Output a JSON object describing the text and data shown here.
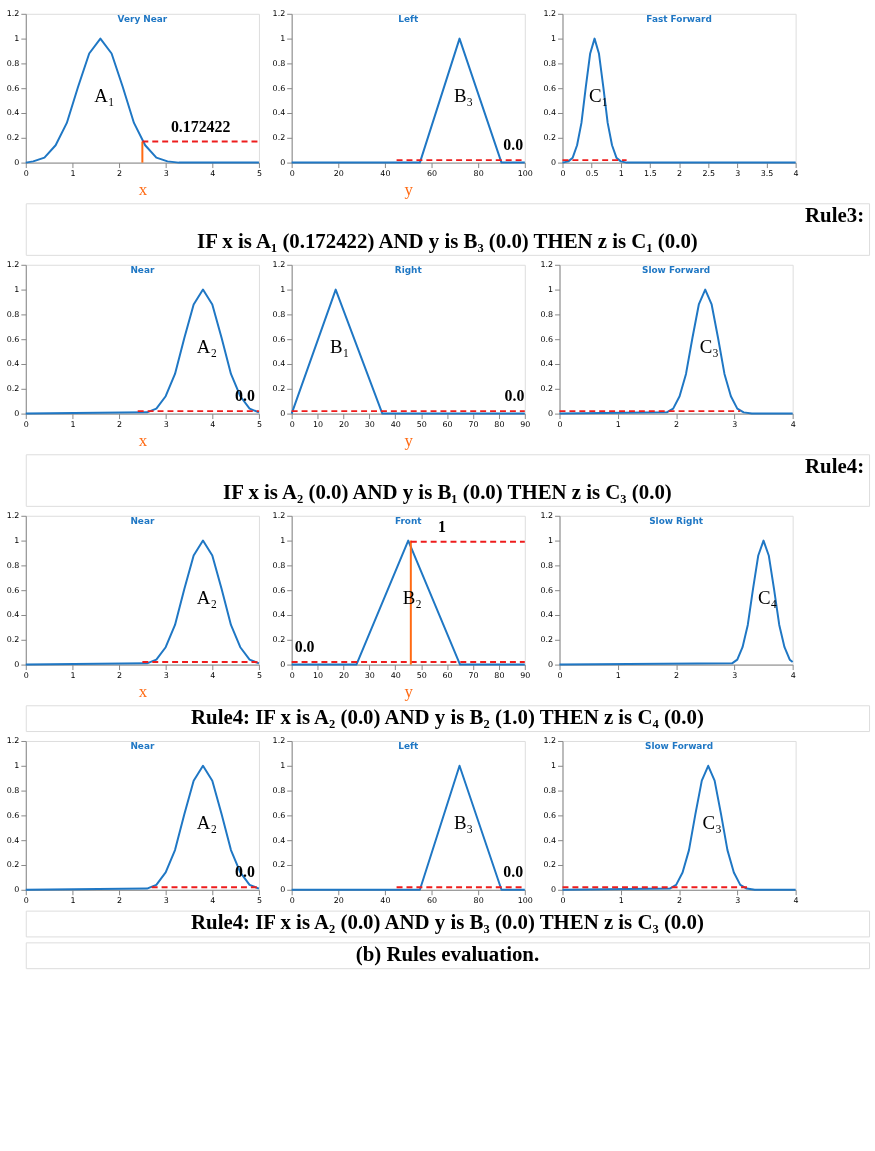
{
  "chart_data": [
    {
      "type": "line",
      "title": "Very Near",
      "xlabel": "x",
      "xlim": [
        0,
        5
      ],
      "xticks": [
        0,
        1,
        2,
        3,
        4,
        5
      ],
      "ylim": [
        0,
        1.2
      ],
      "yticks": [
        0,
        0.2,
        0.4,
        0.6,
        0.8,
        1,
        1.2
      ],
      "grid": false,
      "annotations": [
        "A₁",
        {
          "text": "0.172422",
          "x": 3.75,
          "y": 0.17
        }
      ],
      "series": [
        {
          "color": "#1f77c4",
          "x": [
            0,
            0.16,
            0.4,
            0.64,
            0.88,
            1.12,
            1.36,
            1.6,
            1.84,
            2.08,
            2.32,
            2.56,
            2.8,
            3.04,
            3.28,
            5
          ],
          "values": [
            0,
            0.01,
            0.04,
            0.14,
            0.32,
            0.61,
            0.88,
            1,
            0.88,
            0.61,
            0.32,
            0.14,
            0.04,
            0.01,
            0,
            0
          ]
        },
        {
          "color": "#ff6a13",
          "x": [
            2.5,
            2.5
          ],
          "values": [
            0,
            0.17
          ]
        },
        {
          "color": "#ee1c1c",
          "line_style": "dashed",
          "x": [
            2.5,
            5
          ],
          "values": [
            0.17,
            0.17
          ]
        }
      ]
    },
    {
      "type": "line",
      "title": "Left",
      "xlabel": "y",
      "xlim": [
        0,
        100
      ],
      "xticks": [
        0,
        20,
        40,
        60,
        80,
        100
      ],
      "ylim": [
        0,
        1.2
      ],
      "yticks": [
        0,
        0.2,
        0.4,
        0.6,
        0.8,
        1,
        1.2
      ],
      "grid": false,
      "annotations": [
        "B₃",
        {
          "text": "0.0",
          "x": 95,
          "y": 0.02
        }
      ],
      "series": [
        {
          "color": "#1f77c4",
          "x": [
            0,
            55,
            72,
            90,
            100
          ],
          "values": [
            0,
            0,
            1,
            0,
            0
          ]
        },
        {
          "color": "#ee1c1c",
          "line_style": "dashed",
          "x": [
            45,
            100
          ],
          "values": [
            0.02,
            0.02
          ]
        }
      ]
    },
    {
      "type": "line",
      "title": "Fast Forward",
      "xlim": [
        0,
        4
      ],
      "xticks": [
        0,
        0.5,
        1,
        1.5,
        2,
        2.5,
        3,
        3.5,
        4
      ],
      "ylim": [
        0,
        1.2
      ],
      "yticks": [
        0,
        0.2,
        0.4,
        0.6,
        0.8,
        1,
        1.2
      ],
      "grid": false,
      "annotations": [
        "C₁"
      ],
      "series": [
        {
          "color": "#1f77c4",
          "x": [
            0,
            0.1,
            0.175,
            0.25,
            0.325,
            0.4,
            0.475,
            0.55,
            0.625,
            0.7,
            0.775,
            0.85,
            0.925,
            1,
            1.1,
            4
          ],
          "values": [
            0,
            0.01,
            0.04,
            0.14,
            0.32,
            0.61,
            0.88,
            1,
            0.88,
            0.61,
            0.32,
            0.14,
            0.04,
            0.01,
            0,
            0
          ]
        },
        {
          "color": "#ee1c1c",
          "line_style": "dashed",
          "x": [
            0,
            1.1
          ],
          "values": [
            0.02,
            0.02
          ]
        }
      ]
    },
    {
      "type": "other",
      "annotations": [
        "Rule3:",
        "IF x is A₁ (0.172422)   AND y is B₃ (0.0)      THEN      z is C₁ (0.0)"
      ]
    },
    {
      "type": "line",
      "title": "Near",
      "xlabel": "x",
      "xlim": [
        0,
        5
      ],
      "xticks": [
        0,
        1,
        2,
        3,
        4,
        5
      ],
      "ylim": [
        0,
        1.2
      ],
      "yticks": [
        0,
        0.2,
        0.4,
        0.6,
        0.8,
        1,
        1.2
      ],
      "grid": false,
      "annotations": [
        "A₂",
        {
          "text": "0.0",
          "x": 4.7,
          "y": 0.02
        }
      ],
      "series": [
        {
          "color": "#1f77c4",
          "x": [
            0,
            2.6,
            2.8,
            3,
            3.2,
            3.4,
            3.6,
            3.8,
            4,
            4.2,
            4.4,
            4.6,
            4.8,
            5
          ],
          "values": [
            0,
            0.01,
            0.04,
            0.14,
            0.32,
            0.61,
            0.88,
            1,
            0.88,
            0.61,
            0.32,
            0.14,
            0.04,
            0.01
          ]
        },
        {
          "color": "#ee1c1c",
          "line_style": "dashed",
          "x": [
            2.4,
            5
          ],
          "values": [
            0.02,
            0.02
          ]
        }
      ]
    },
    {
      "type": "line",
      "title": "Right",
      "xlabel": "y",
      "xlim": [
        0,
        90
      ],
      "xticks": [
        0,
        10,
        20,
        30,
        40,
        50,
        60,
        70,
        80,
        90
      ],
      "ylim": [
        0,
        1.2
      ],
      "yticks": [
        0,
        0.2,
        0.4,
        0.6,
        0.8,
        1,
        1.2
      ],
      "grid": false,
      "annotations": [
        "B₁",
        {
          "text": "0.0",
          "x": 86,
          "y": 0.02
        }
      ],
      "series": [
        {
          "color": "#1f77c4",
          "x": [
            0,
            17,
            35,
            90
          ],
          "values": [
            0,
            1,
            0,
            0
          ]
        },
        {
          "color": "#ee1c1c",
          "line_style": "dashed",
          "x": [
            0,
            90
          ],
          "values": [
            0.02,
            0.02
          ]
        }
      ]
    },
    {
      "type": "line",
      "title": "Slow Forward",
      "xlim": [
        0,
        4
      ],
      "xticks": [
        0,
        1,
        2,
        3,
        4
      ],
      "ylim": [
        0,
        1.2
      ],
      "yticks": [
        0,
        0.2,
        0.4,
        0.6,
        0.8,
        1,
        1.2
      ],
      "grid": false,
      "annotations": [
        "C₃"
      ],
      "series": [
        {
          "color": "#1f77c4",
          "x": [
            0,
            1.84,
            1.95,
            2.06,
            2.17,
            2.28,
            2.39,
            2.5,
            2.61,
            2.72,
            2.83,
            2.94,
            3.05,
            3.16,
            3.3,
            4
          ],
          "values": [
            0,
            0.01,
            0.04,
            0.14,
            0.32,
            0.61,
            0.88,
            1,
            0.88,
            0.61,
            0.32,
            0.14,
            0.04,
            0.01,
            0,
            0
          ]
        },
        {
          "color": "#ee1c1c",
          "line_style": "dashed",
          "x": [
            0,
            3.1
          ],
          "values": [
            0.02,
            0.02
          ]
        }
      ]
    },
    {
      "type": "other",
      "annotations": [
        "Rule4:",
        "IF x is A₂ (0.0)   AND      y is B₁ (0.0)            THEN      z is C₃ (0.0)"
      ]
    },
    {
      "type": "line",
      "title": "Near",
      "xlabel": "x",
      "xlim": [
        0,
        5
      ],
      "xticks": [
        0,
        1,
        2,
        3,
        4,
        5
      ],
      "ylim": [
        0,
        1.2
      ],
      "yticks": [
        0,
        0.2,
        0.4,
        0.6,
        0.8,
        1,
        1.2
      ],
      "grid": false,
      "annotations": [
        "A₂"
      ],
      "series": [
        {
          "color": "#1f77c4",
          "x": [
            0,
            2.6,
            2.8,
            3,
            3.2,
            3.4,
            3.6,
            3.8,
            4,
            4.2,
            4.4,
            4.6,
            4.8,
            5
          ],
          "values": [
            0,
            0.01,
            0.04,
            0.14,
            0.32,
            0.61,
            0.88,
            1,
            0.88,
            0.61,
            0.32,
            0.14,
            0.04,
            0.01
          ]
        },
        {
          "color": "#ee1c1c",
          "line_style": "dashed",
          "x": [
            2.5,
            5
          ],
          "values": [
            0.02,
            0.02
          ]
        }
      ]
    },
    {
      "type": "line",
      "title": "Front",
      "xlabel": "y",
      "xlim": [
        0,
        90
      ],
      "xticks": [
        0,
        10,
        20,
        30,
        40,
        50,
        60,
        70,
        80,
        90
      ],
      "ylim": [
        0,
        1.2
      ],
      "yticks": [
        0,
        0.2,
        0.4,
        0.6,
        0.8,
        1,
        1.2
      ],
      "grid": false,
      "annotations": [
        "B₂",
        {
          "text": "1",
          "x": 58,
          "y": 0.99
        },
        {
          "text": "0.0",
          "x": 5,
          "y": 0.02
        }
      ],
      "series": [
        {
          "color": "#1f77c4",
          "x": [
            0,
            25,
            45,
            65,
            90
          ],
          "values": [
            0,
            0,
            1,
            0,
            0
          ]
        },
        {
          "color": "#ee1c1c",
          "line_style": "dashed",
          "x": [
            0,
            90
          ],
          "values": [
            0.02,
            0.02
          ]
        },
        {
          "color": "#ff6a13",
          "x": [
            46,
            46
          ],
          "values": [
            0,
            1
          ]
        },
        {
          "color": "#ee1c1c",
          "line_style": "dashed",
          "x": [
            46,
            90
          ],
          "values": [
            0.99,
            0.99
          ]
        }
      ]
    },
    {
      "type": "line",
      "title": "Slow Right",
      "xlim": [
        0,
        4
      ],
      "xticks": [
        0,
        1,
        2,
        3,
        4
      ],
      "ylim": [
        0,
        1.2
      ],
      "yticks": [
        0,
        0.2,
        0.4,
        0.6,
        0.8,
        1,
        1.2
      ],
      "grid": false,
      "annotations": [
        "C₄"
      ],
      "series": [
        {
          "color": "#1f77c4",
          "x": [
            0,
            2.96,
            3.05,
            3.14,
            3.23,
            3.32,
            3.41,
            3.5,
            3.59,
            3.68,
            3.77,
            3.86,
            3.95,
            4
          ],
          "values": [
            0,
            0.01,
            0.04,
            0.14,
            0.32,
            0.61,
            0.88,
            1,
            0.88,
            0.61,
            0.32,
            0.14,
            0.04,
            0.02
          ]
        }
      ]
    },
    {
      "type": "other",
      "annotations": [
        "Rule4: IF x is A₂ (0.0)   AND      y is B₂ (1.0)            THEN      z is C₄ (0.0)"
      ]
    },
    {
      "type": "line",
      "title": "Near",
      "xlim": [
        0,
        5
      ],
      "xticks": [
        0,
        1,
        2,
        3,
        4,
        5
      ],
      "ylim": [
        0,
        1.2
      ],
      "yticks": [
        0,
        0.2,
        0.4,
        0.6,
        0.8,
        1,
        1.2
      ],
      "grid": false,
      "annotations": [
        "A₂",
        {
          "text": "0.0",
          "x": 4.7,
          "y": 0.02
        }
      ],
      "series": [
        {
          "color": "#1f77c4",
          "x": [
            0,
            2.6,
            2.8,
            3,
            3.2,
            3.4,
            3.6,
            3.8,
            4,
            4.2,
            4.4,
            4.6,
            4.8,
            5
          ],
          "values": [
            0,
            0.01,
            0.04,
            0.14,
            0.32,
            0.61,
            0.88,
            1,
            0.88,
            0.61,
            0.32,
            0.14,
            0.04,
            0.01
          ]
        },
        {
          "color": "#ee1c1c",
          "line_style": "dashed",
          "x": [
            2.7,
            5
          ],
          "values": [
            0.02,
            0.02
          ]
        }
      ]
    },
    {
      "type": "line",
      "title": "Left",
      "xlim": [
        0,
        100
      ],
      "xticks": [
        0,
        20,
        40,
        60,
        80,
        100
      ],
      "ylim": [
        0,
        1.2
      ],
      "yticks": [
        0,
        0.2,
        0.4,
        0.6,
        0.8,
        1,
        1.2
      ],
      "grid": false,
      "annotations": [
        "B₃",
        {
          "text": "0.0",
          "x": 95,
          "y": 0.02
        }
      ],
      "series": [
        {
          "color": "#1f77c4",
          "x": [
            0,
            55,
            72,
            90,
            100
          ],
          "values": [
            0,
            0,
            1,
            0,
            0
          ]
        },
        {
          "color": "#ee1c1c",
          "line_style": "dashed",
          "x": [
            45,
            100
          ],
          "values": [
            0.02,
            0.02
          ]
        }
      ]
    },
    {
      "type": "line",
      "title": "Slow Forward",
      "xlim": [
        0,
        4
      ],
      "xticks": [
        0,
        1,
        2,
        3,
        4
      ],
      "ylim": [
        0,
        1.2
      ],
      "yticks": [
        0,
        0.2,
        0.4,
        0.6,
        0.8,
        1,
        1.2
      ],
      "grid": false,
      "annotations": [
        "C₃"
      ],
      "series": [
        {
          "color": "#1f77c4",
          "x": [
            0,
            1.84,
            1.95,
            2.06,
            2.17,
            2.28,
            2.39,
            2.5,
            2.61,
            2.72,
            2.83,
            2.94,
            3.05,
            3.16,
            3.3,
            4
          ],
          "values": [
            0,
            0.01,
            0.04,
            0.14,
            0.32,
            0.61,
            0.88,
            1,
            0.88,
            0.61,
            0.32,
            0.14,
            0.04,
            0.01,
            0,
            0
          ]
        },
        {
          "color": "#ee1c1c",
          "line_style": "dashed",
          "x": [
            0,
            3.2
          ],
          "values": [
            0.02,
            0.02
          ]
        }
      ]
    },
    {
      "type": "other",
      "annotations": [
        "Rule4: IF x is A₂ (0.0)   AND      y is B₃ (0.0)            THEN      z is C₃ (0.0)"
      ]
    },
    {
      "type": "other",
      "annotations": [
        "(b) Rules evaluation."
      ]
    }
  ]
}
